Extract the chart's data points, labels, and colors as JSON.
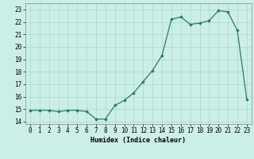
{
  "x": [
    0,
    1,
    2,
    3,
    4,
    5,
    6,
    7,
    8,
    9,
    10,
    11,
    12,
    13,
    14,
    15,
    16,
    17,
    18,
    19,
    20,
    21,
    22,
    23
  ],
  "y": [
    14.9,
    14.9,
    14.9,
    14.8,
    14.9,
    14.9,
    14.8,
    14.2,
    14.2,
    15.3,
    15.7,
    16.3,
    17.2,
    18.1,
    19.3,
    22.2,
    22.4,
    21.8,
    21.9,
    22.1,
    22.9,
    22.8,
    21.3,
    15.8
  ],
  "xlabel": "Humidex (Indice chaleur)",
  "xlim": [
    -0.5,
    23.5
  ],
  "ylim": [
    13.8,
    23.5
  ],
  "yticks": [
    14,
    15,
    16,
    17,
    18,
    19,
    20,
    21,
    22,
    23
  ],
  "xticks": [
    0,
    1,
    2,
    3,
    4,
    5,
    6,
    7,
    8,
    9,
    10,
    11,
    12,
    13,
    14,
    15,
    16,
    17,
    18,
    19,
    20,
    21,
    22,
    23
  ],
  "line_color": "#2d7a6a",
  "marker": "D",
  "marker_size": 1.8,
  "bg_color": "#cceee8",
  "grid_color": "#aad8d0",
  "axis_fontsize": 6.0,
  "tick_fontsize": 5.5,
  "fig_width": 3.2,
  "fig_height": 2.0,
  "dpi": 100
}
